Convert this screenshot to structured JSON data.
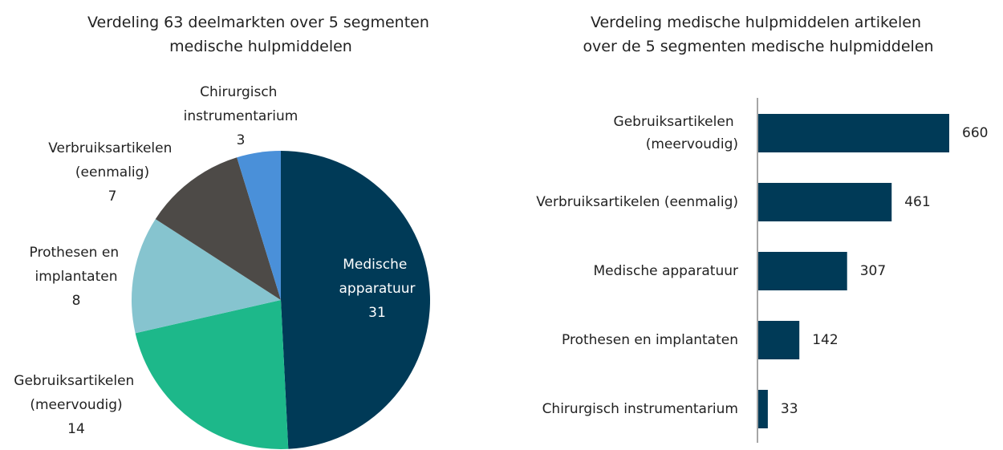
{
  "chart_data": [
    {
      "type": "pie",
      "title": "Verdeling 63 deelmarkten over 5 segmenten medische hulpmiddelen",
      "categories": [
        "Medische apparatuur",
        "Gebruiksartikelen (meervoudig)",
        "Prothesen en implantaten",
        "Verbruiksartikelen (eenmalig)",
        "Chirurgisch instrumentarium"
      ],
      "values": [
        31,
        14,
        8,
        7,
        3
      ],
      "colors": [
        "#003a57",
        "#1db88a",
        "#86c4cf",
        "#4d4a47",
        "#4a90d9"
      ]
    },
    {
      "type": "bar",
      "title": "Verdeling medische hulpmiddelen artikelen over de 5 segmenten medische hulpmiddelen",
      "categories": [
        "Gebruiksartikelen (meervoudig)",
        "Verbruiksartikelen (eenmalig)",
        "Medische apparatuur",
        "Prothesen en implantaten",
        "Chirurgisch instrumentarium"
      ],
      "values": [
        660,
        461,
        307,
        142,
        33
      ],
      "color": "#003a57"
    }
  ]
}
